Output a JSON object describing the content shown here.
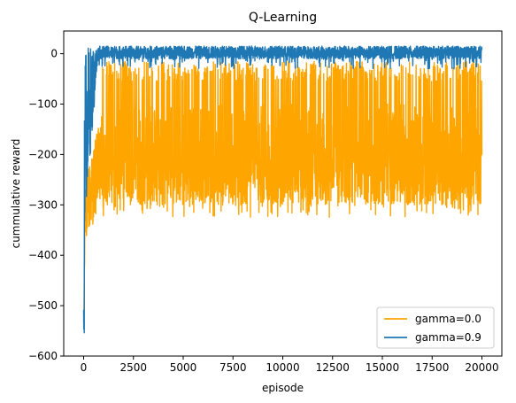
{
  "chart_data": {
    "type": "line",
    "title": "Q-Learning",
    "xlabel": "episode",
    "ylabel": "cummulative reward",
    "xlim": [
      -1000,
      21000
    ],
    "ylim": [
      -600,
      45
    ],
    "xticks": [
      0,
      2500,
      5000,
      7500,
      10000,
      12500,
      15000,
      17500,
      20000
    ],
    "yticks": [
      0,
      -100,
      -200,
      -300,
      -400,
      -500,
      -600
    ],
    "grid": false,
    "legend_position": "lower-right",
    "episodes": 20000,
    "series": [
      {
        "name": "gamma=0.0",
        "color": "#ffa500",
        "summary": {
          "initial_min": -570,
          "plateau_band": [
            -300,
            -15
          ],
          "dense_band": [
            -300,
            -200
          ],
          "occasional_min": -325
        },
        "x": [
          0,
          100,
          200,
          300,
          400,
          500,
          600,
          700,
          800,
          1000,
          1500,
          2500,
          5000,
          10000,
          15000,
          20000
        ],
        "y": [
          -570,
          -380,
          -360,
          -330,
          -300,
          -290,
          -270,
          -260,
          -230,
          -200,
          -150,
          -100,
          -100,
          -100,
          -100,
          -100
        ]
      },
      {
        "name": "gamma=0.9",
        "color": "#1f77b4",
        "summary": {
          "initial_min": -565,
          "plateau_band": [
            -30,
            15
          ],
          "occasional_min": -30
        },
        "x": [
          0,
          50,
          100,
          150,
          200,
          300,
          400,
          500,
          600,
          800,
          1000,
          2000,
          5000,
          10000,
          15000,
          20000
        ],
        "y": [
          -565,
          -520,
          -360,
          -300,
          -250,
          -150,
          -80,
          -20,
          0,
          5,
          8,
          8,
          8,
          8,
          8,
          8
        ]
      }
    ]
  }
}
